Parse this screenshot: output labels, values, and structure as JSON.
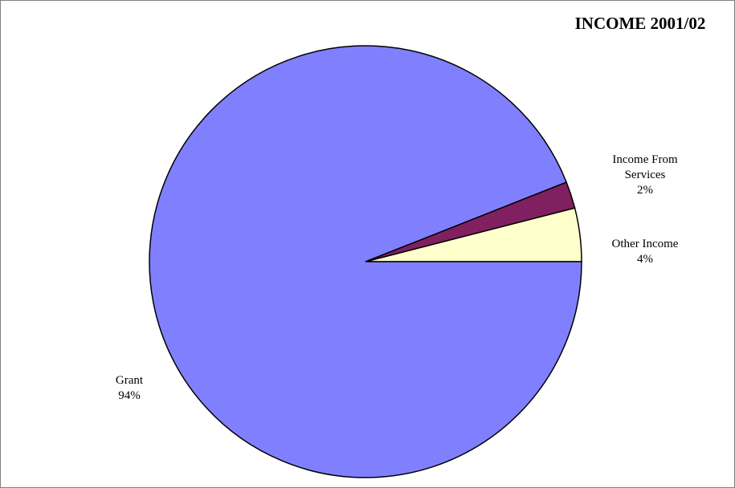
{
  "chart_data": {
    "type": "pie",
    "title": "INCOME 2001/02",
    "slices": [
      {
        "name": "Other Income",
        "value": 4,
        "label": "4%",
        "color": "#ffffcc"
      },
      {
        "name": "Income From Services",
        "value": 2,
        "label": "2%",
        "color": "#802060"
      },
      {
        "name": "Grant",
        "value": 94,
        "label": "94%",
        "color": "#8080ff"
      }
    ],
    "start_angle_deg": 0,
    "direction": "counterclockwise",
    "legend": "none",
    "stroke_color": "#000000"
  }
}
